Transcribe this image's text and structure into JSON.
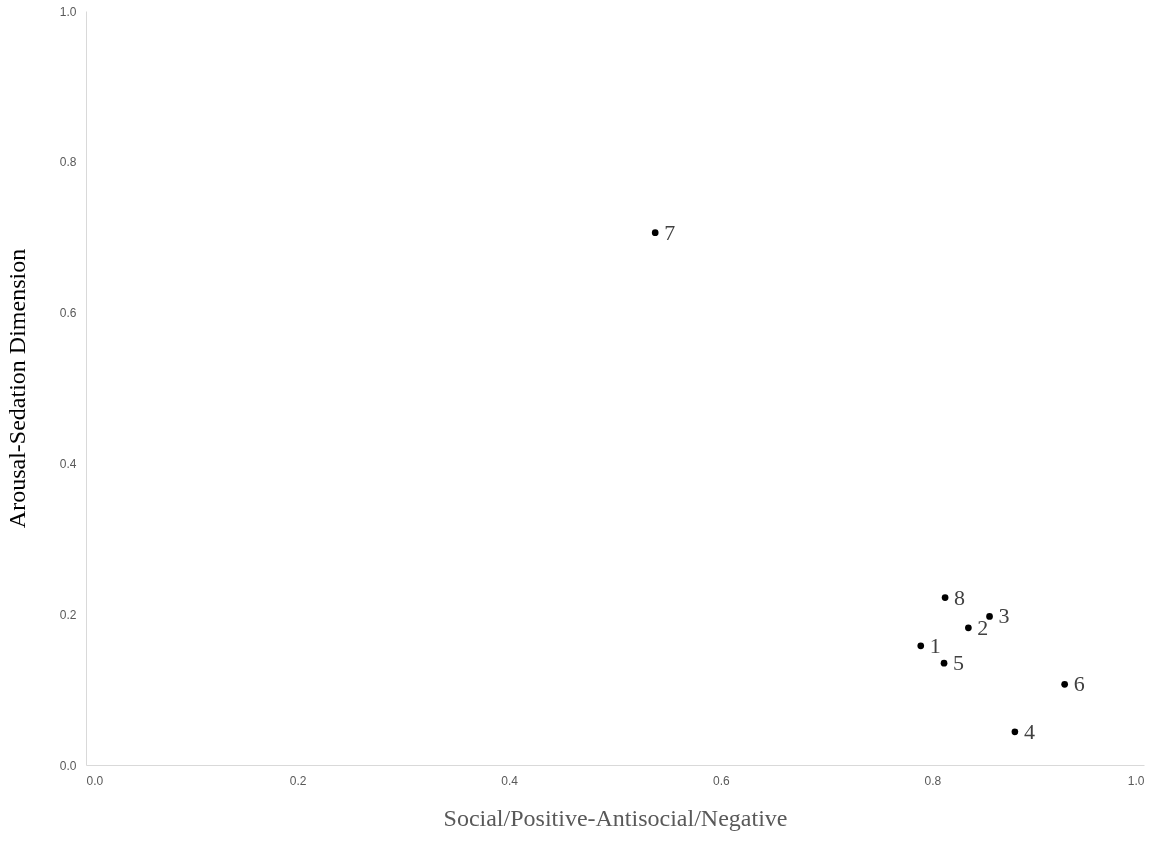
{
  "chart_data": {
    "type": "scatter",
    "xlabel": "Social/Positive-Antisocial/Negative",
    "ylabel": "Arousal-Sedation Dimension",
    "x": [
      0.789,
      0.834,
      0.854,
      0.878,
      0.811,
      0.925,
      0.538,
      0.812
    ],
    "values": [
      0.158,
      0.182,
      0.197,
      0.044,
      0.135,
      0.107,
      0.706,
      0.222
    ],
    "color": "#000000",
    "marker": "circle",
    "grid": false,
    "xlim": [
      0,
      1
    ],
    "ylim": [
      0,
      1
    ],
    "xticks": [
      {
        "value": 0,
        "label": "0.0"
      },
      {
        "value": 0.2,
        "label": "0.2"
      },
      {
        "value": 0.4,
        "label": "0.4"
      },
      {
        "value": 0.6,
        "label": "0.6"
      },
      {
        "value": 0.8,
        "label": "0.8"
      },
      {
        "value": 1,
        "label": "1.0"
      }
    ],
    "yticks": [
      {
        "value": 0,
        "label": "0.0"
      },
      {
        "value": 0.2,
        "label": "0.2"
      },
      {
        "value": 0.4,
        "label": "0.4"
      },
      {
        "value": 0.6,
        "label": "0.6"
      },
      {
        "value": 0.8,
        "label": "0.8"
      },
      {
        "value": 1,
        "label": "1.0"
      }
    ],
    "annotations": [
      {
        "text": "1",
        "x": 0.789,
        "y": 0.158
      },
      {
        "text": "2",
        "x": 0.834,
        "y": 0.182
      },
      {
        "text": "3",
        "x": 0.854,
        "y": 0.197
      },
      {
        "text": "4",
        "x": 0.878,
        "y": 0.044
      },
      {
        "text": "5",
        "x": 0.811,
        "y": 0.135
      },
      {
        "text": "6",
        "x": 0.925,
        "y": 0.107
      },
      {
        "text": "7",
        "x": 0.538,
        "y": 0.706
      },
      {
        "text": "8",
        "x": 0.812,
        "y": 0.222
      }
    ]
  }
}
